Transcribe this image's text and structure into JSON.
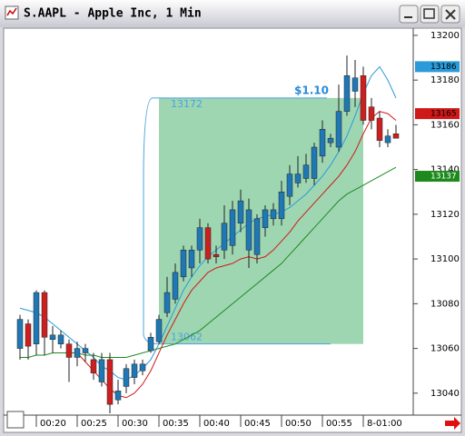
{
  "window": {
    "title": "S.AAPL - Apple Inc, 1 Min"
  },
  "chart_data": {
    "type": "candlestick",
    "categories": [
      null,
      null,
      "00:20",
      null,
      null,
      null,
      null,
      "00:25",
      null,
      null,
      null,
      null,
      "00:30",
      null,
      null,
      null,
      null,
      "00:35",
      null,
      null,
      null,
      null,
      "00:40",
      null,
      null,
      null,
      null,
      "00:45",
      null,
      null,
      null,
      null,
      "00:50",
      null,
      null,
      null,
      null,
      "00:55",
      null,
      null,
      null,
      null,
      "8-01:00",
      null,
      null,
      null,
      null
    ],
    "open": [
      13060,
      13071,
      13062,
      13085,
      13064,
      13062,
      13062,
      13056,
      13058,
      13055,
      13045,
      13055,
      13037,
      13043,
      13047,
      13050,
      13059,
      13063,
      13076,
      13082,
      13092,
      13096,
      13104,
      13114,
      13102,
      13104,
      13106,
      13116,
      13104,
      13102,
      13114,
      13118,
      13118,
      13128,
      13134,
      13136,
      13136,
      13146,
      13152,
      13150,
      13166,
      13175,
      13182,
      13168,
      13163,
      13152,
      13156
    ],
    "high": [
      13075,
      13073,
      13086,
      13086,
      13070,
      13068,
      13064,
      13063,
      13062,
      13058,
      13058,
      13058,
      13046,
      13053,
      13055,
      13055,
      13067,
      13075,
      13092,
      13098,
      13106,
      13106,
      13118,
      13116,
      13106,
      13124,
      13126,
      13131,
      13127,
      13120,
      13124,
      13125,
      13135,
      13142,
      13146,
      13147,
      13152,
      13162,
      13156,
      13178,
      13191,
      13189,
      13186,
      13172,
      13166,
      13158,
      13160
    ],
    "low": [
      13055,
      13055,
      13057,
      13057,
      13058,
      13060,
      13045,
      13052,
      13054,
      13046,
      13043,
      13031,
      13035,
      13040,
      13044,
      13048,
      13058,
      13062,
      13074,
      13080,
      13090,
      13092,
      13098,
      13098,
      13098,
      13100,
      13102,
      13112,
      13096,
      13098,
      13110,
      13115,
      13115,
      13124,
      13132,
      13134,
      13133,
      13143,
      13150,
      13148,
      13164,
      13168,
      13160,
      13158,
      13150,
      13150,
      13154
    ],
    "close": [
      13073,
      13061,
      13085,
      13065,
      13066,
      13066,
      13056,
      13060,
      13060,
      13049,
      13055,
      13035,
      13041,
      13051,
      13053,
      13053,
      13065,
      13073,
      13085,
      13094,
      13104,
      13104,
      13114,
      13100,
      13101,
      13116,
      13122,
      13126,
      13122,
      13118,
      13122,
      13122,
      13130,
      13138,
      13138,
      13142,
      13150,
      13158,
      13154,
      13166,
      13182,
      13181,
      13162,
      13162,
      13153,
      13155,
      13154
    ],
    "up_color": "#1f78b4",
    "down_color": "#cc1f1f",
    "lines": [
      {
        "color": "#2a9ad8",
        "tag": 13186,
        "values": [
          13078,
          13077,
          13076,
          13074,
          13071,
          13068,
          13065,
          13062,
          13059,
          13056,
          13052,
          13050,
          13047,
          13046,
          13048,
          13051,
          13055,
          13062,
          13070,
          13078,
          13086,
          13092,
          13097,
          13101,
          13104,
          13107,
          13110,
          13113,
          13116,
          13118,
          13119,
          13120,
          13121,
          13123,
          13126,
          13129,
          13133,
          13137,
          13142,
          13148,
          13155,
          13164,
          13174,
          13182,
          13186,
          13180,
          13172
        ]
      },
      {
        "color": "#d01818",
        "tag": 13165,
        "values": [
          null,
          null,
          null,
          null,
          null,
          null,
          null,
          13058,
          13054,
          13050,
          13046,
          13042,
          13039,
          13038,
          13040,
          13044,
          13050,
          13058,
          13066,
          13073,
          13080,
          13086,
          13090,
          13094,
          13096,
          13097,
          13098,
          13100,
          13101,
          13100,
          13101,
          13104,
          13108,
          13112,
          13117,
          13121,
          13125,
          13129,
          13133,
          13137,
          13142,
          13148,
          13156,
          13163,
          13166,
          13165,
          13162
        ]
      },
      {
        "color": "#1e8a1e",
        "tag": 13137,
        "values": [
          13056,
          13056,
          13057,
          13057,
          13058,
          13058,
          13058,
          13058,
          13057,
          13057,
          13056,
          13056,
          13056,
          13056,
          13057,
          13058,
          13059,
          13060,
          13061,
          13062,
          13064,
          13066,
          13068,
          13071,
          13074,
          13077,
          13080,
          13083,
          13086,
          13089,
          13092,
          13095,
          13098,
          13102,
          13106,
          13110,
          13114,
          13118,
          13122,
          13126,
          13129,
          13131,
          13133,
          13135,
          13137,
          13139,
          13141
        ]
      }
    ],
    "range_box": {
      "high": 13172,
      "low": 13062,
      "label": "$1.10",
      "color": "#3dae66"
    },
    "ylim": [
      13031,
      13202
    ],
    "yticks": [
      13040,
      13060,
      13080,
      13100,
      13120,
      13140,
      13160,
      13180,
      13200
    ],
    "grid": false
  }
}
